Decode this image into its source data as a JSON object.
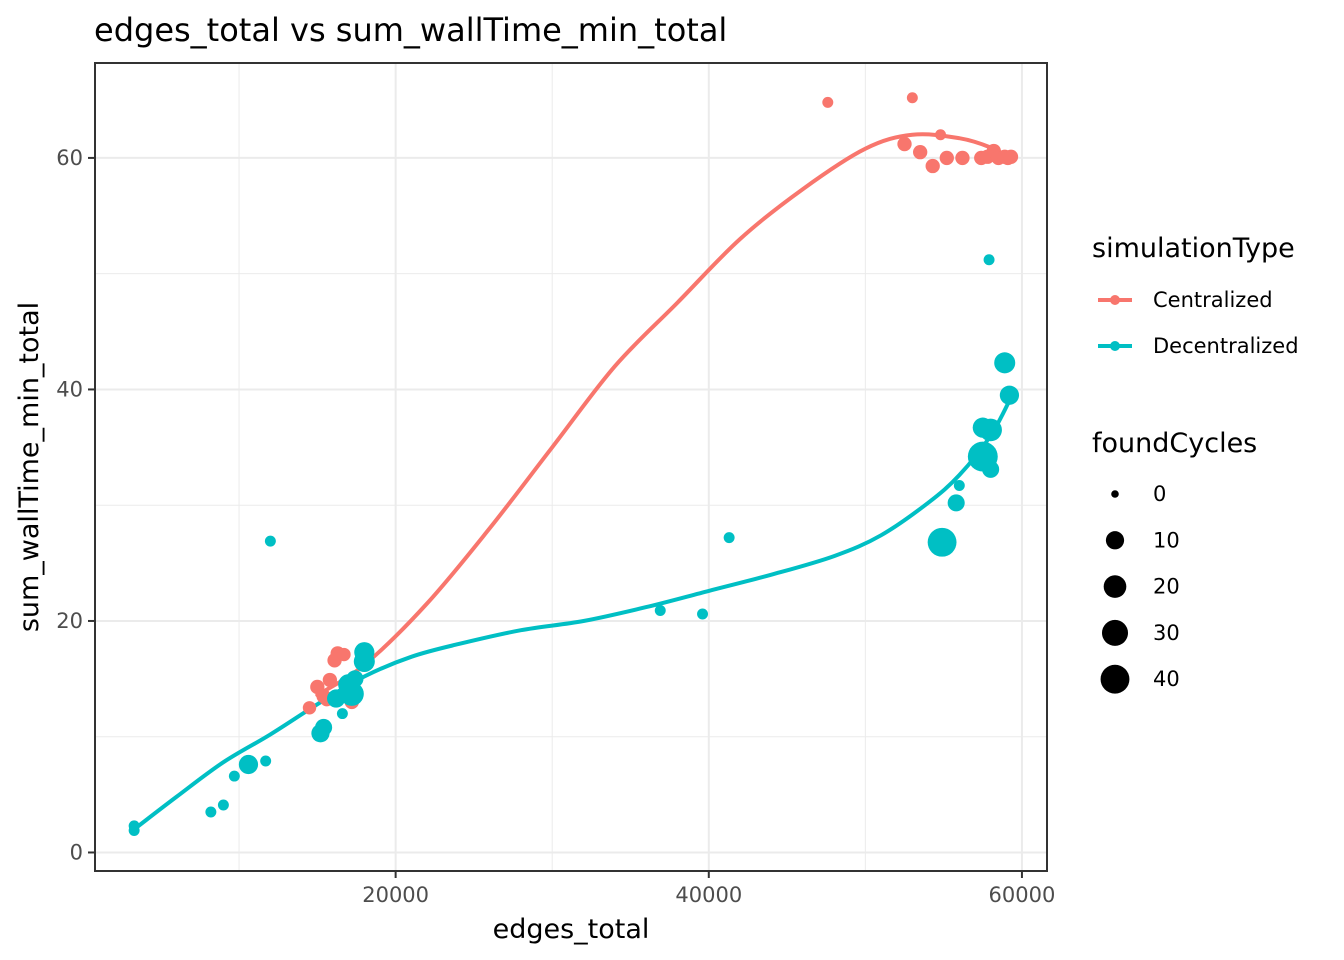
{
  "chart_data": {
    "type": "scatter",
    "title": "edges_total  vs  sum_wallTime_min_total",
    "xlabel": "edges_total",
    "ylabel": "sum_wallTime_min_total",
    "xlim": [
      800,
      61600
    ],
    "ylim": [
      -1.6,
      68.2
    ],
    "x_ticks": [
      20000,
      40000,
      60000
    ],
    "x_tick_labels": [
      "20000",
      "40000",
      "60000"
    ],
    "y_ticks": [
      0,
      20,
      40,
      60
    ],
    "y_tick_labels": [
      "0",
      "20",
      "40",
      "60"
    ],
    "x_minor_ticks": [
      10000,
      30000,
      50000
    ],
    "y_minor_ticks": [
      10,
      30,
      50
    ],
    "grid": true,
    "legend_position": "right",
    "color_legend": {
      "title": "simulationType",
      "entries": [
        {
          "label": "Centralized",
          "color": "#F8766D"
        },
        {
          "label": "Decentralized",
          "color": "#00BFC4"
        }
      ]
    },
    "size_legend": {
      "title": "foundCycles",
      "values": [
        0,
        10,
        20,
        30,
        40
      ],
      "labels": [
        "0",
        "10",
        "20",
        "30",
        "40"
      ]
    },
    "series": [
      {
        "name": "Centralized",
        "color": "#F8766D",
        "points": [
          {
            "x": 47600,
            "y": 64.8,
            "size": 1
          },
          {
            "x": 53000,
            "y": 65.2,
            "size": 1
          },
          {
            "x": 54800,
            "y": 62.0,
            "size": 1
          },
          {
            "x": 52500,
            "y": 61.2,
            "size": 4
          },
          {
            "x": 53500,
            "y": 60.5,
            "size": 4
          },
          {
            "x": 54300,
            "y": 59.3,
            "size": 4
          },
          {
            "x": 55200,
            "y": 60.0,
            "size": 4
          },
          {
            "x": 56200,
            "y": 60.0,
            "size": 4
          },
          {
            "x": 57400,
            "y": 60.0,
            "size": 4
          },
          {
            "x": 57800,
            "y": 60.1,
            "size": 4
          },
          {
            "x": 58200,
            "y": 60.6,
            "size": 4
          },
          {
            "x": 58500,
            "y": 60.0,
            "size": 4
          },
          {
            "x": 58900,
            "y": 60.1,
            "size": 4
          },
          {
            "x": 59100,
            "y": 60.0,
            "size": 4
          },
          {
            "x": 59300,
            "y": 60.1,
            "size": 4
          },
          {
            "x": 14500,
            "y": 12.5,
            "size": 3
          },
          {
            "x": 15000,
            "y": 14.3,
            "size": 4
          },
          {
            "x": 15400,
            "y": 13.5,
            "size": 4
          },
          {
            "x": 15800,
            "y": 14.9,
            "size": 4
          },
          {
            "x": 15600,
            "y": 13.2,
            "size": 3
          },
          {
            "x": 16100,
            "y": 16.6,
            "size": 4
          },
          {
            "x": 16300,
            "y": 17.2,
            "size": 4
          },
          {
            "x": 16700,
            "y": 17.1,
            "size": 3
          },
          {
            "x": 17200,
            "y": 13.0,
            "size": 4
          },
          {
            "x": 18200,
            "y": 16.8,
            "size": 4
          }
        ],
        "smooth": [
          [
            15000,
            13.6
          ],
          [
            18000,
            16.2
          ],
          [
            22000,
            21.5
          ],
          [
            26000,
            28.0
          ],
          [
            30000,
            35.0
          ],
          [
            34000,
            42.0
          ],
          [
            38000,
            47.5
          ],
          [
            42000,
            53.0
          ],
          [
            46000,
            57.3
          ],
          [
            50000,
            60.8
          ],
          [
            53000,
            62.0
          ],
          [
            56000,
            61.7
          ],
          [
            58000,
            60.9
          ],
          [
            59500,
            59.8
          ]
        ]
      },
      {
        "name": "Decentralized",
        "color": "#00BFC4",
        "points": [
          {
            "x": 3300,
            "y": 2.3,
            "size": 1
          },
          {
            "x": 3300,
            "y": 1.9,
            "size": 1
          },
          {
            "x": 8200,
            "y": 3.5,
            "size": 1
          },
          {
            "x": 9000,
            "y": 4.1,
            "size": 1
          },
          {
            "x": 9700,
            "y": 6.6,
            "size": 1
          },
          {
            "x": 10600,
            "y": 7.6,
            "size": 12
          },
          {
            "x": 11700,
            "y": 7.9,
            "size": 1
          },
          {
            "x": 12000,
            "y": 26.9,
            "size": 1
          },
          {
            "x": 15200,
            "y": 10.3,
            "size": 10
          },
          {
            "x": 15400,
            "y": 10.8,
            "size": 8
          },
          {
            "x": 16200,
            "y": 13.3,
            "size": 10
          },
          {
            "x": 16600,
            "y": 12.0,
            "size": 1
          },
          {
            "x": 17000,
            "y": 14.5,
            "size": 16
          },
          {
            "x": 17200,
            "y": 13.7,
            "size": 24
          },
          {
            "x": 17400,
            "y": 15.0,
            "size": 8
          },
          {
            "x": 18000,
            "y": 16.5,
            "size": 16
          },
          {
            "x": 18000,
            "y": 17.3,
            "size": 14
          },
          {
            "x": 36900,
            "y": 20.9,
            "size": 1
          },
          {
            "x": 39600,
            "y": 20.6,
            "size": 1
          },
          {
            "x": 41300,
            "y": 27.2,
            "size": 1
          },
          {
            "x": 54900,
            "y": 26.8,
            "size": 40
          },
          {
            "x": 55800,
            "y": 30.2,
            "size": 8
          },
          {
            "x": 56000,
            "y": 31.7,
            "size": 1
          },
          {
            "x": 57500,
            "y": 34.2,
            "size": 44
          },
          {
            "x": 57500,
            "y": 36.7,
            "size": 14
          },
          {
            "x": 57900,
            "y": 51.2,
            "size": 1
          },
          {
            "x": 58000,
            "y": 33.1,
            "size": 8
          },
          {
            "x": 58000,
            "y": 36.5,
            "size": 20
          },
          {
            "x": 58900,
            "y": 42.3,
            "size": 16
          },
          {
            "x": 59200,
            "y": 39.5,
            "size": 12
          }
        ],
        "smooth": [
          [
            3300,
            2.0
          ],
          [
            6000,
            4.8
          ],
          [
            9000,
            7.8
          ],
          [
            12000,
            10.2
          ],
          [
            15000,
            12.8
          ],
          [
            18000,
            15.2
          ],
          [
            21000,
            16.9
          ],
          [
            24000,
            18.0
          ],
          [
            28000,
            19.2
          ],
          [
            32000,
            20.0
          ],
          [
            36000,
            21.2
          ],
          [
            40000,
            22.6
          ],
          [
            44000,
            24.0
          ],
          [
            48000,
            25.6
          ],
          [
            51000,
            27.4
          ],
          [
            54000,
            30.2
          ],
          [
            56000,
            32.6
          ],
          [
            58000,
            36.0
          ],
          [
            59300,
            39.3
          ]
        ]
      }
    ]
  }
}
